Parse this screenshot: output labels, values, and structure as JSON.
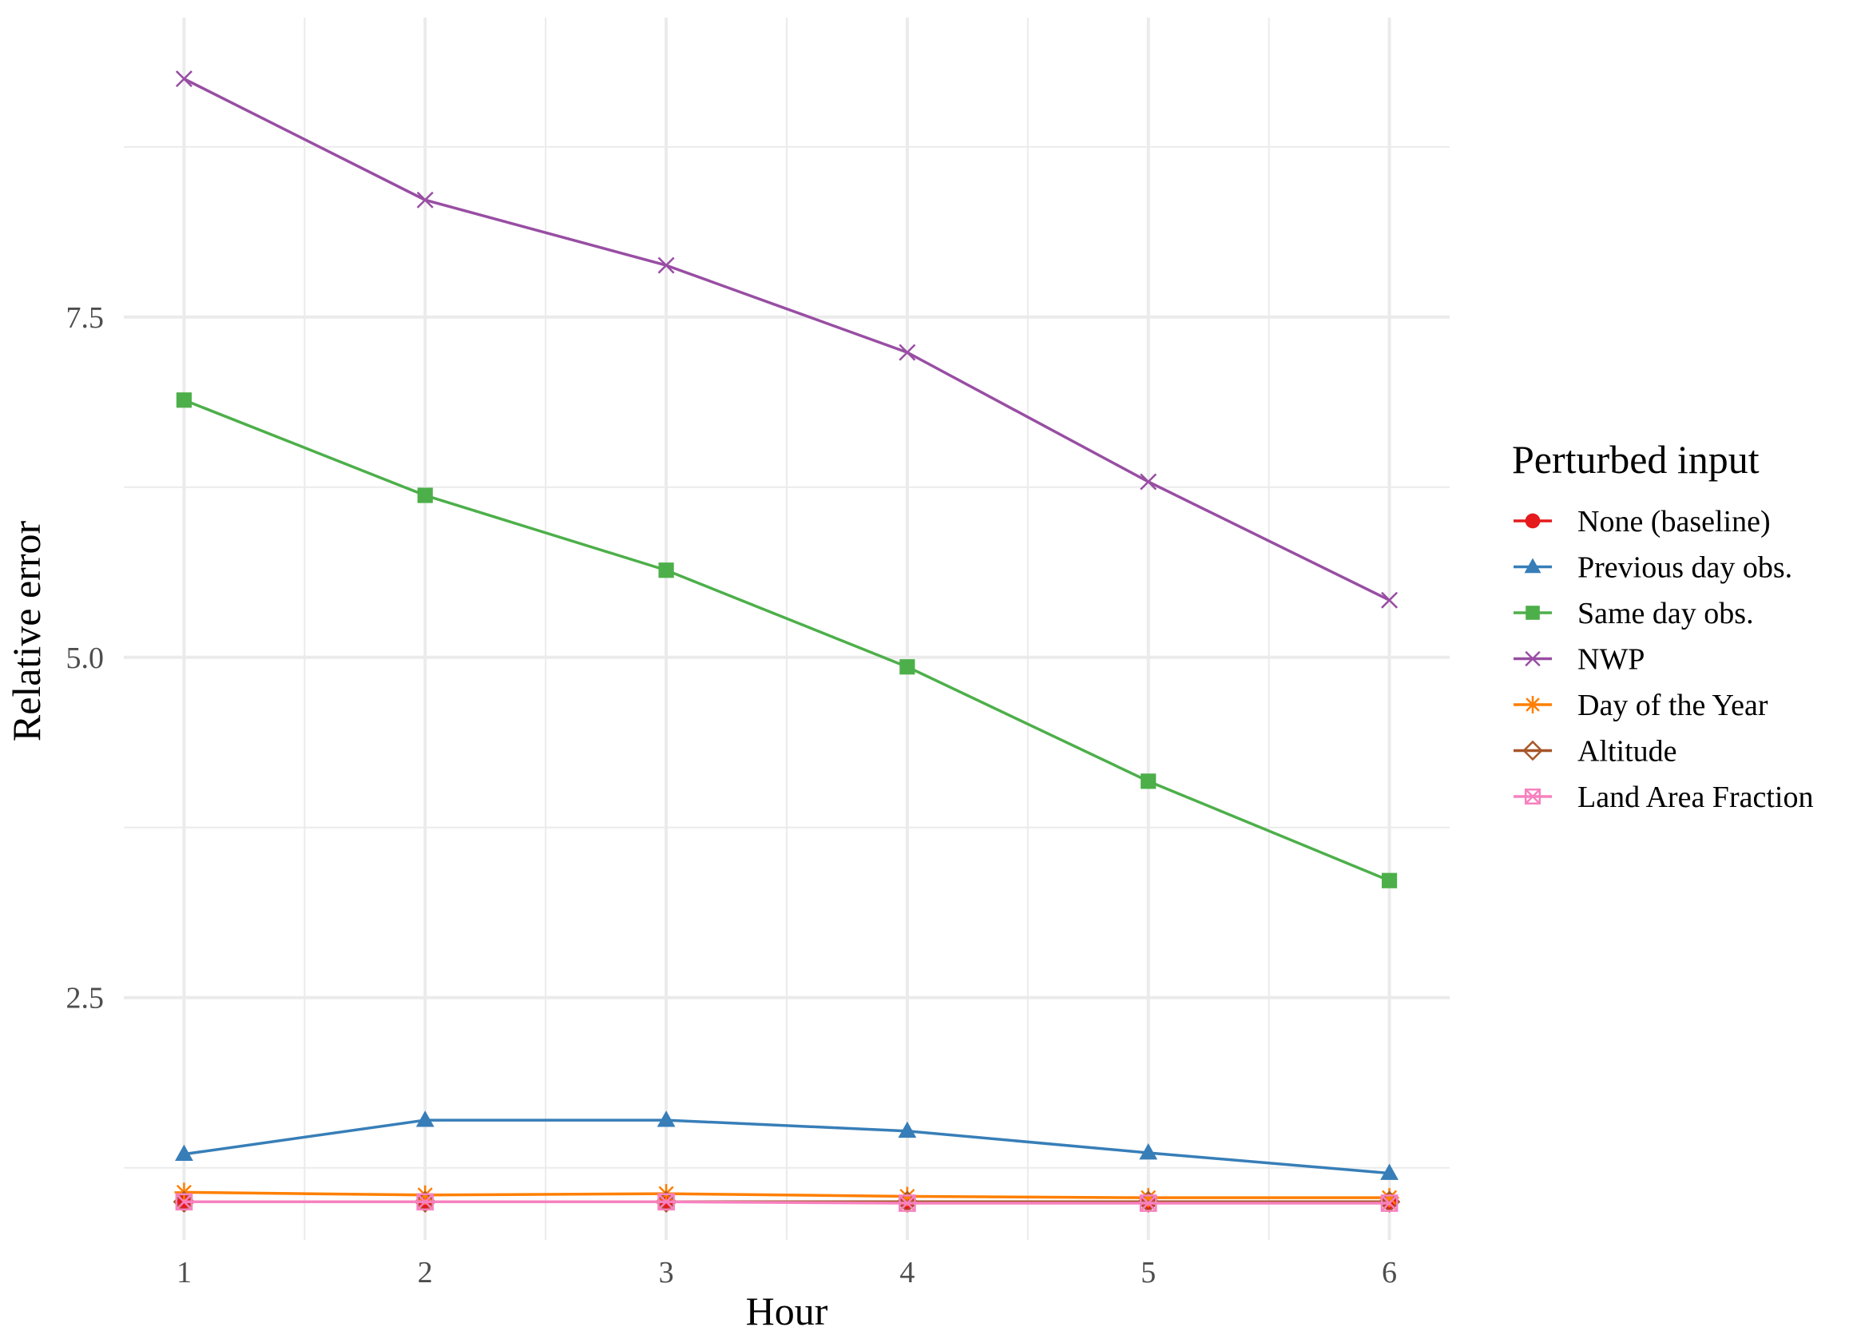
{
  "chart_data": {
    "type": "line",
    "title": "",
    "xlabel": "Hour",
    "ylabel": "Relative error",
    "x": [
      1,
      2,
      3,
      4,
      5,
      6
    ],
    "xticks": [
      "1",
      "2",
      "3",
      "4",
      "5",
      "6"
    ],
    "yticks": [
      "2.5",
      "5.0",
      "7.5"
    ],
    "ytick_values": [
      2.5,
      5.0,
      7.5
    ],
    "xlim": [
      0.75,
      6.25
    ],
    "ylim": [
      0.72,
      9.7
    ],
    "grid": true,
    "legend": {
      "title": "Perturbed input",
      "placement": "right"
    },
    "series": [
      {
        "name": "None (baseline)",
        "color": "#e41a1c",
        "marker": "circle",
        "values": [
          1.0,
          1.0,
          1.0,
          1.0,
          1.0,
          1.0
        ]
      },
      {
        "name": "Previous day obs.",
        "color": "#377eb8",
        "marker": "triangle",
        "values": [
          1.35,
          1.6,
          1.6,
          1.52,
          1.36,
          1.21
        ]
      },
      {
        "name": "Same day obs.",
        "color": "#4daf4a",
        "marker": "square",
        "values": [
          6.89,
          6.19,
          5.64,
          4.93,
          4.09,
          3.36
        ]
      },
      {
        "name": "NWP",
        "color": "#984ea3",
        "marker": "x",
        "values": [
          9.25,
          8.36,
          7.88,
          7.24,
          6.29,
          5.42
        ]
      },
      {
        "name": "Day of the Year",
        "color": "#ff7f00",
        "marker": "asterisk",
        "values": [
          1.07,
          1.05,
          1.06,
          1.04,
          1.03,
          1.03
        ]
      },
      {
        "name": "Altitude",
        "color": "#a65628",
        "marker": "diamond",
        "values": [
          1.0,
          1.0,
          1.0,
          1.0,
          1.0,
          1.0
        ]
      },
      {
        "name": "Land Area Fraction",
        "color": "#f781bf",
        "marker": "boxx",
        "values": [
          1.0,
          1.0,
          1.0,
          0.99,
          0.99,
          0.99
        ]
      }
    ]
  }
}
